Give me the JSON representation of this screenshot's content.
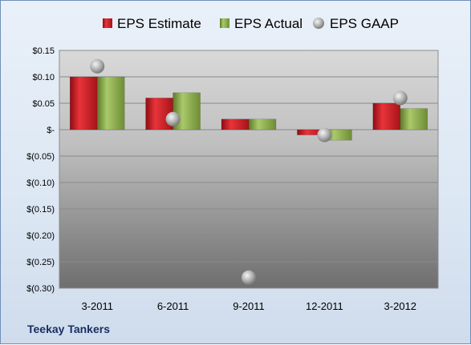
{
  "company_label": "Teekay Tankers",
  "chart_data": {
    "type": "bar",
    "categories": [
      "3-2011",
      "6-2011",
      "9-2011",
      "12-2011",
      "3-2012"
    ],
    "series": [
      {
        "name": "EPS Estimate",
        "kind": "bar",
        "color": "#c8141c",
        "values": [
          0.1,
          0.06,
          0.02,
          -0.01,
          0.05
        ]
      },
      {
        "name": "EPS Actual",
        "kind": "bar",
        "color": "#8db04a",
        "values": [
          0.1,
          0.07,
          0.02,
          -0.02,
          0.04
        ]
      },
      {
        "name": "EPS GAAP",
        "kind": "marker",
        "color": "#a9a9a9",
        "values": [
          0.12,
          0.02,
          -0.28,
          -0.01,
          0.06
        ]
      }
    ],
    "ylim": [
      -0.3,
      0.15
    ],
    "yticks": [
      0.15,
      0.1,
      0.05,
      0,
      -0.05,
      -0.1,
      -0.15,
      -0.2,
      -0.25,
      -0.3
    ],
    "ytick_labels": [
      "$0.15",
      "$0.10",
      "$0.05",
      "$-",
      "$(0.05)",
      "$(0.10)",
      "$(0.15)",
      "$(0.20)",
      "$(0.25)",
      "$(0.30)"
    ],
    "grid": true,
    "legend_position": "top"
  }
}
